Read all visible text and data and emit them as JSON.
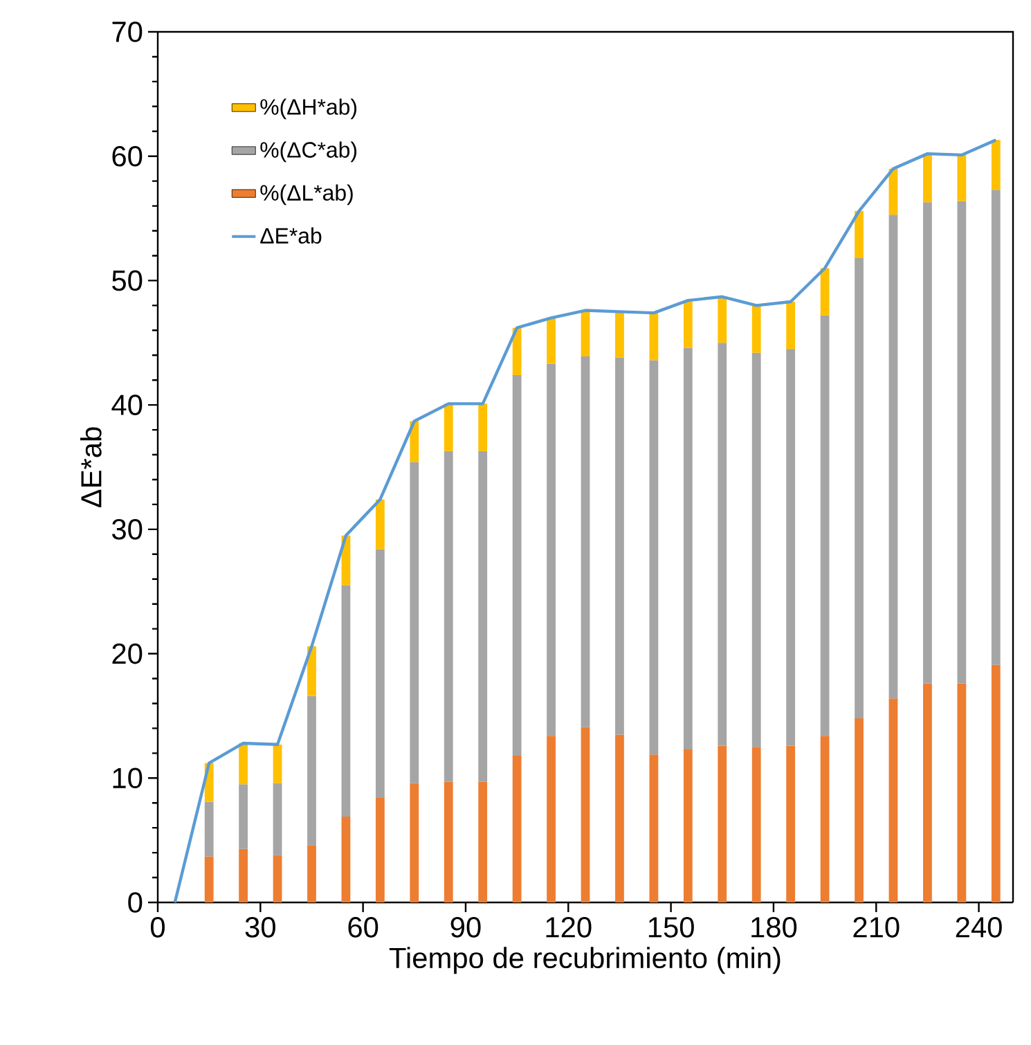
{
  "chart_data": {
    "type": "bar",
    "stacked": true,
    "xlabel": "Tiempo de recubrimiento (min)",
    "ylabel": "ΔE*ab",
    "xlim": [
      0,
      250
    ],
    "xticks": [
      0,
      30,
      60,
      90,
      120,
      150,
      180,
      210,
      240
    ],
    "ylim": [
      0,
      70
    ],
    "yticks": [
      0,
      10,
      20,
      30,
      40,
      50,
      60,
      70
    ],
    "legend": "top left",
    "series": [
      {
        "name": "%(ΔL*ab)",
        "color": "#ed7d31",
        "x": [
          15,
          25,
          35,
          45,
          55,
          65,
          75,
          85,
          95,
          105,
          115,
          125,
          135,
          145,
          155,
          165,
          175,
          185,
          195,
          205,
          215,
          225,
          235,
          245
        ],
        "values": [
          3.7,
          4.3,
          3.8,
          4.6,
          6.9,
          8.4,
          9.6,
          9.7,
          9.7,
          11.8,
          13.4,
          14.1,
          13.5,
          11.9,
          12.3,
          12.6,
          12.5,
          12.6,
          13.4,
          14.8,
          16.4,
          17.6,
          17.6,
          19.1
        ]
      },
      {
        "name": "%(ΔC*ab)",
        "color": "#a5a5a5",
        "x": [
          15,
          25,
          35,
          45,
          55,
          65,
          75,
          85,
          95,
          105,
          115,
          125,
          135,
          145,
          155,
          165,
          175,
          185,
          195,
          205,
          215,
          225,
          235,
          245
        ],
        "values": [
          4.4,
          5.2,
          5.8,
          12.0,
          18.6,
          20.0,
          25.8,
          26.6,
          26.6,
          30.6,
          29.9,
          29.8,
          30.3,
          31.7,
          32.3,
          32.4,
          31.7,
          31.9,
          33.8,
          37.0,
          38.9,
          38.7,
          38.8,
          38.2
        ]
      },
      {
        "name": "%(ΔH*ab)",
        "color": "#ffc000",
        "x": [
          15,
          25,
          35,
          45,
          55,
          65,
          75,
          85,
          95,
          105,
          115,
          125,
          135,
          145,
          155,
          165,
          175,
          185,
          195,
          205,
          215,
          225,
          235,
          245
        ],
        "values": [
          3.1,
          3.3,
          3.1,
          4.0,
          4.0,
          4.0,
          3.3,
          3.8,
          3.8,
          3.8,
          3.7,
          3.7,
          3.7,
          3.8,
          3.8,
          3.7,
          3.8,
          3.8,
          3.8,
          3.8,
          3.7,
          3.9,
          3.7,
          4.0
        ]
      },
      {
        "name": "ΔE*ab",
        "type": "line",
        "color": "#5b9bd5",
        "x": [
          5,
          15,
          25,
          35,
          45,
          55,
          65,
          75,
          85,
          95,
          105,
          115,
          125,
          135,
          145,
          155,
          165,
          175,
          185,
          195,
          205,
          215,
          225,
          235,
          245
        ],
        "values": [
          0,
          11.2,
          12.8,
          12.7,
          20.6,
          29.5,
          32.4,
          38.7,
          40.1,
          40.1,
          46.2,
          47.0,
          47.6,
          47.5,
          47.4,
          48.4,
          48.7,
          48.0,
          48.3,
          51.0,
          55.6,
          59.0,
          60.2,
          60.1,
          61.3
        ]
      }
    ]
  }
}
